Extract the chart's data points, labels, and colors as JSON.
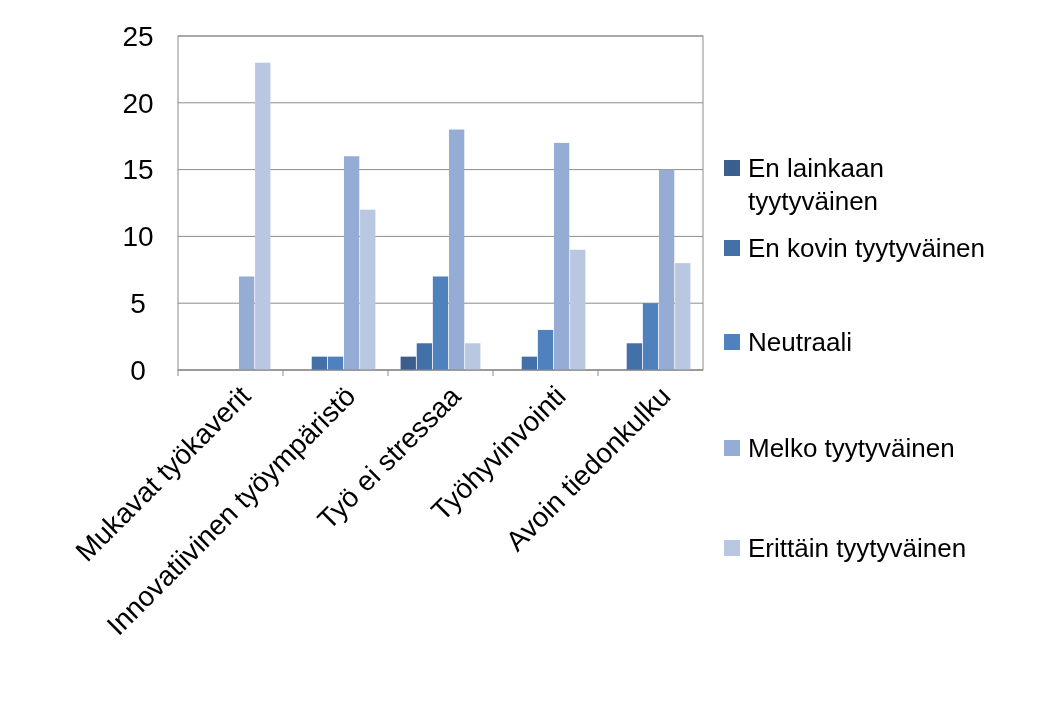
{
  "chart_data": {
    "type": "bar",
    "categories": [
      "Mukavat työkaverit",
      "Innovatiivinen työympäristö",
      "Työ ei stressaa",
      "Työhyvinvointi",
      "Avoin tiedonkulku"
    ],
    "series": [
      {
        "name": "En lainkaan tyytyväinen",
        "color": "#3b5e8c",
        "values": [
          0,
          0,
          1,
          0,
          0
        ]
      },
      {
        "name": "En kovin tyytyväinen",
        "color": "#4470a8",
        "values": [
          0,
          1,
          2,
          1,
          2
        ]
      },
      {
        "name": "Neutraali",
        "color": "#4f81bd",
        "values": [
          0,
          1,
          7,
          3,
          5
        ]
      },
      {
        "name": "Melko tyytyväinen",
        "color": "#95add4",
        "values": [
          7,
          16,
          18,
          17,
          15
        ]
      },
      {
        "name": "Erittäin tyytyväinen",
        "color": "#b9c7e0",
        "values": [
          23,
          12,
          2,
          9,
          8
        ]
      }
    ],
    "ylim": [
      0,
      25
    ],
    "yticks": [
      0,
      5,
      10,
      15,
      20,
      25
    ],
    "grid": "y",
    "legend": "right"
  }
}
